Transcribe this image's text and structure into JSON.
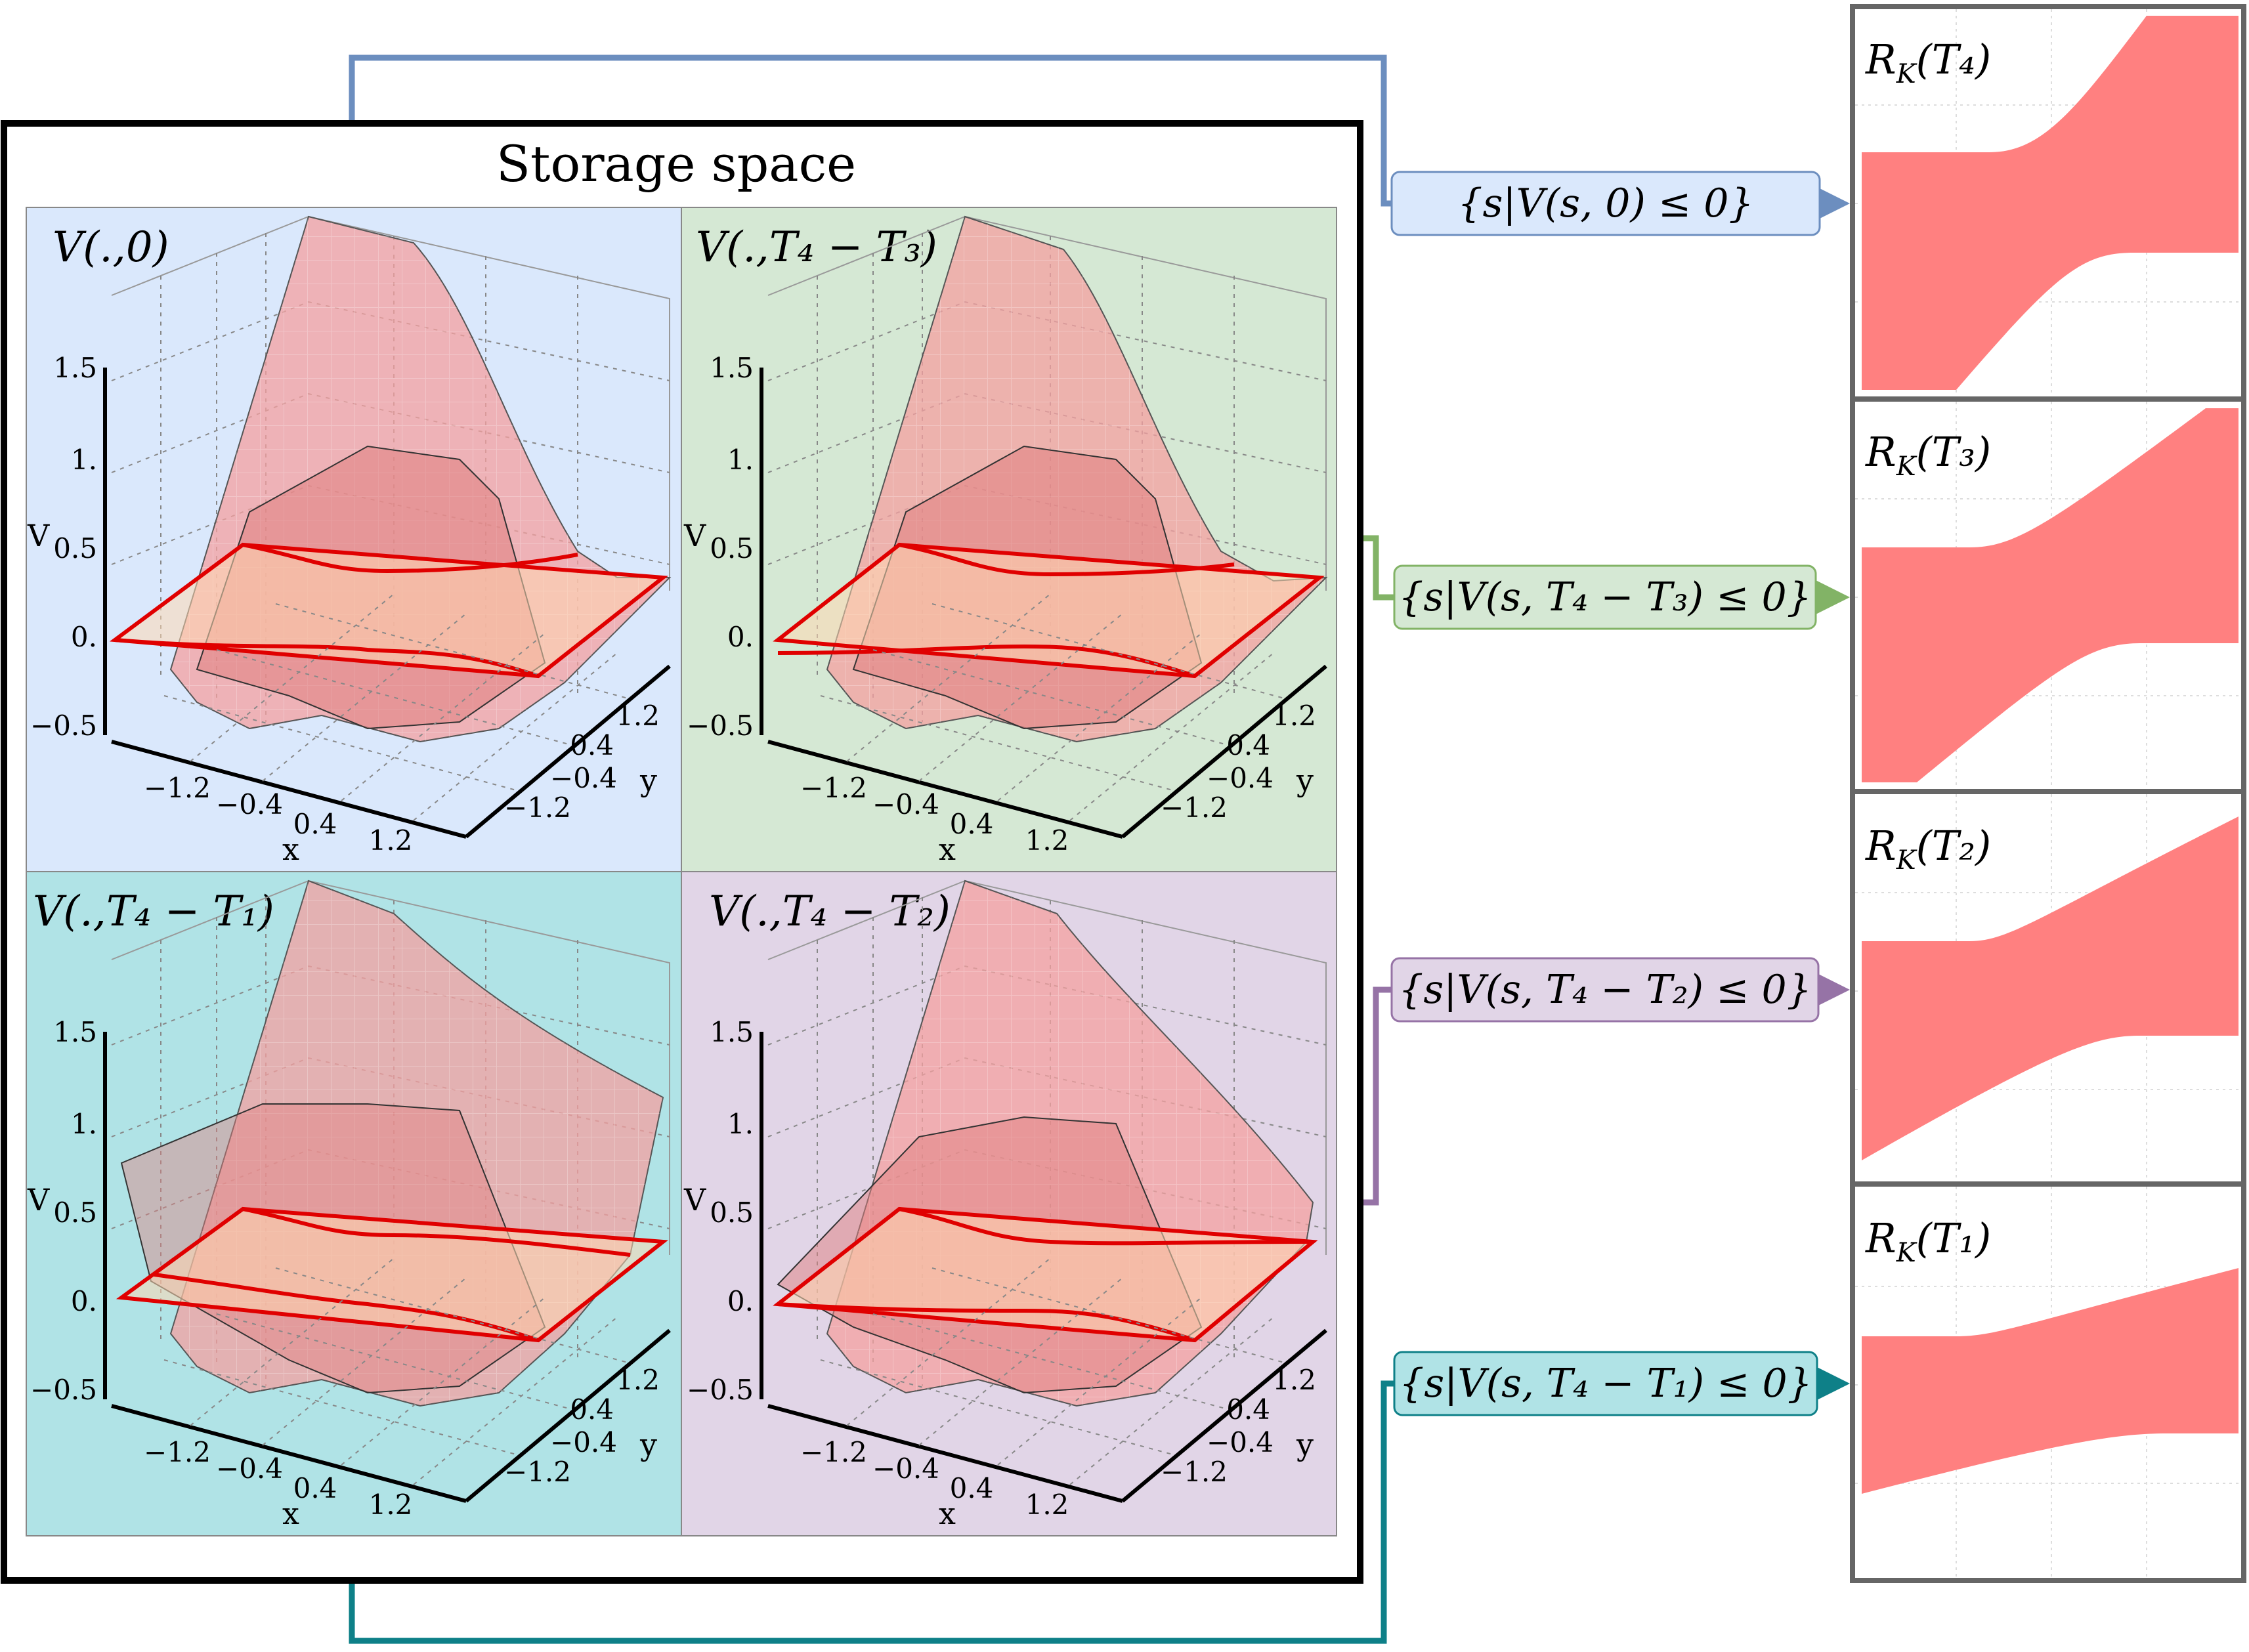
{
  "storage_title": "Storage space",
  "panels": [
    {
      "id": "p0",
      "title": "V(.,0)",
      "bg": "#dae8fc"
    },
    {
      "id": "p3",
      "title": "V(.,T₄ − T₃)",
      "bg": "#d5e8d4"
    },
    {
      "id": "p1",
      "title": "V(.,T₄ − T₁)",
      "bg": "#b0e3e6"
    },
    {
      "id": "p2",
      "title": "V(.,T₄ − T₂)",
      "bg": "#e1d5e7"
    }
  ],
  "axes": {
    "z_ticks": [
      "1.5",
      "1.",
      "0.5",
      "0.",
      "−0.5"
    ],
    "z_label": "V",
    "x_ticks": [
      "−1.2",
      "−0.4",
      "0.4",
      "1.2"
    ],
    "x_label": "x",
    "y_ticks": [
      "1.2",
      "0.4",
      "−0.4",
      "−1.2"
    ],
    "y_label": "y"
  },
  "sets": [
    {
      "id": "s0",
      "label": "{s|V(s, 0) ≤ 0}",
      "fill": "#dae8fc",
      "stroke": "#6c8ebf"
    },
    {
      "id": "s3",
      "label": "{s|V(s, T₄ − T₃) ≤ 0}",
      "fill": "#d5e8d4",
      "stroke": "#82b366"
    },
    {
      "id": "s2",
      "label": "{s|V(s, T₄ − T₂) ≤ 0}",
      "fill": "#e1d5e7",
      "stroke": "#9673a6"
    },
    {
      "id": "s1",
      "label": "{s|V(s, T₄ − T₁) ≤ 0}",
      "fill": "#b0e3e6",
      "stroke": "#0e8088"
    }
  ],
  "reach_sets": [
    {
      "id": "r4",
      "label": "R_K(T₄)",
      "label_main": "R",
      "label_sub": "K",
      "label_arg": "(T₄)"
    },
    {
      "id": "r3",
      "label": "R_K(T₃)",
      "label_main": "R",
      "label_sub": "K",
      "label_arg": "(T₃)"
    },
    {
      "id": "r2",
      "label": "R_K(T₂)",
      "label_main": "R",
      "label_sub": "K",
      "label_arg": "(T₂)"
    },
    {
      "id": "r1",
      "label": "R_K(T₁)",
      "label_main": "R",
      "label_sub": "K",
      "label_arg": "(T₁)"
    }
  ],
  "colors": {
    "reach_fill": "#ff8080",
    "surface": "#f4a0a0",
    "zero_plane": "#ffd9b3",
    "slice_line": "#e00000",
    "blue_conn": "#6c8ebf",
    "green_conn": "#82b366",
    "purple_conn": "#9673a6",
    "teal_conn": "#0e8088"
  }
}
